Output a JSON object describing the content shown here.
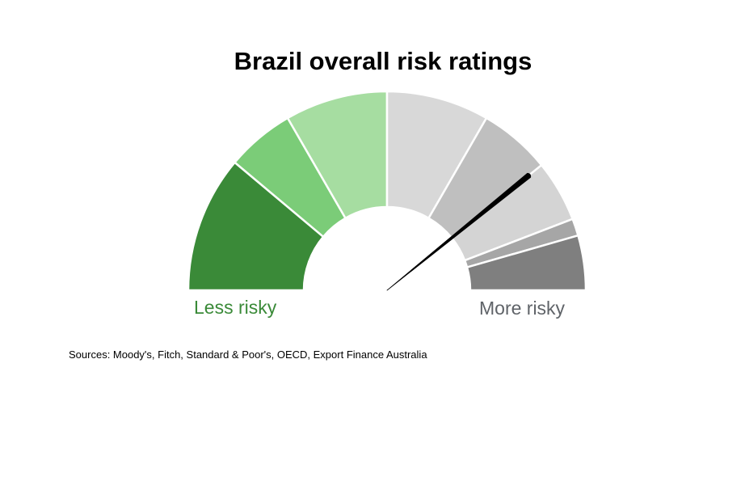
{
  "chart_data": {
    "type": "gauge",
    "title": "Brazil overall risk ratings",
    "segments": [
      {
        "color": "#3a8a38"
      },
      {
        "color": "#7bcc78"
      },
      {
        "color": "#a6dda1"
      },
      {
        "color": "#d8d8d8"
      },
      {
        "color": "#bfbfbf"
      },
      {
        "color": "#d4d4d4"
      },
      {
        "color": "#a6a6a6"
      },
      {
        "color": "#7f7f7f"
      }
    ],
    "segment_boundaries_deg": [
      0,
      40,
      60,
      90,
      120,
      141,
      159,
      164,
      180
    ],
    "needle_value_deg": 141,
    "scale_min_label": "Less risky",
    "scale_max_label": "More risky",
    "scale_min_color": "#3a8a38",
    "scale_max_color": "#5f6368"
  },
  "source_note": "Sources: Moody's, Fitch, Standard & Poor's, OECD, Export Finance Australia"
}
